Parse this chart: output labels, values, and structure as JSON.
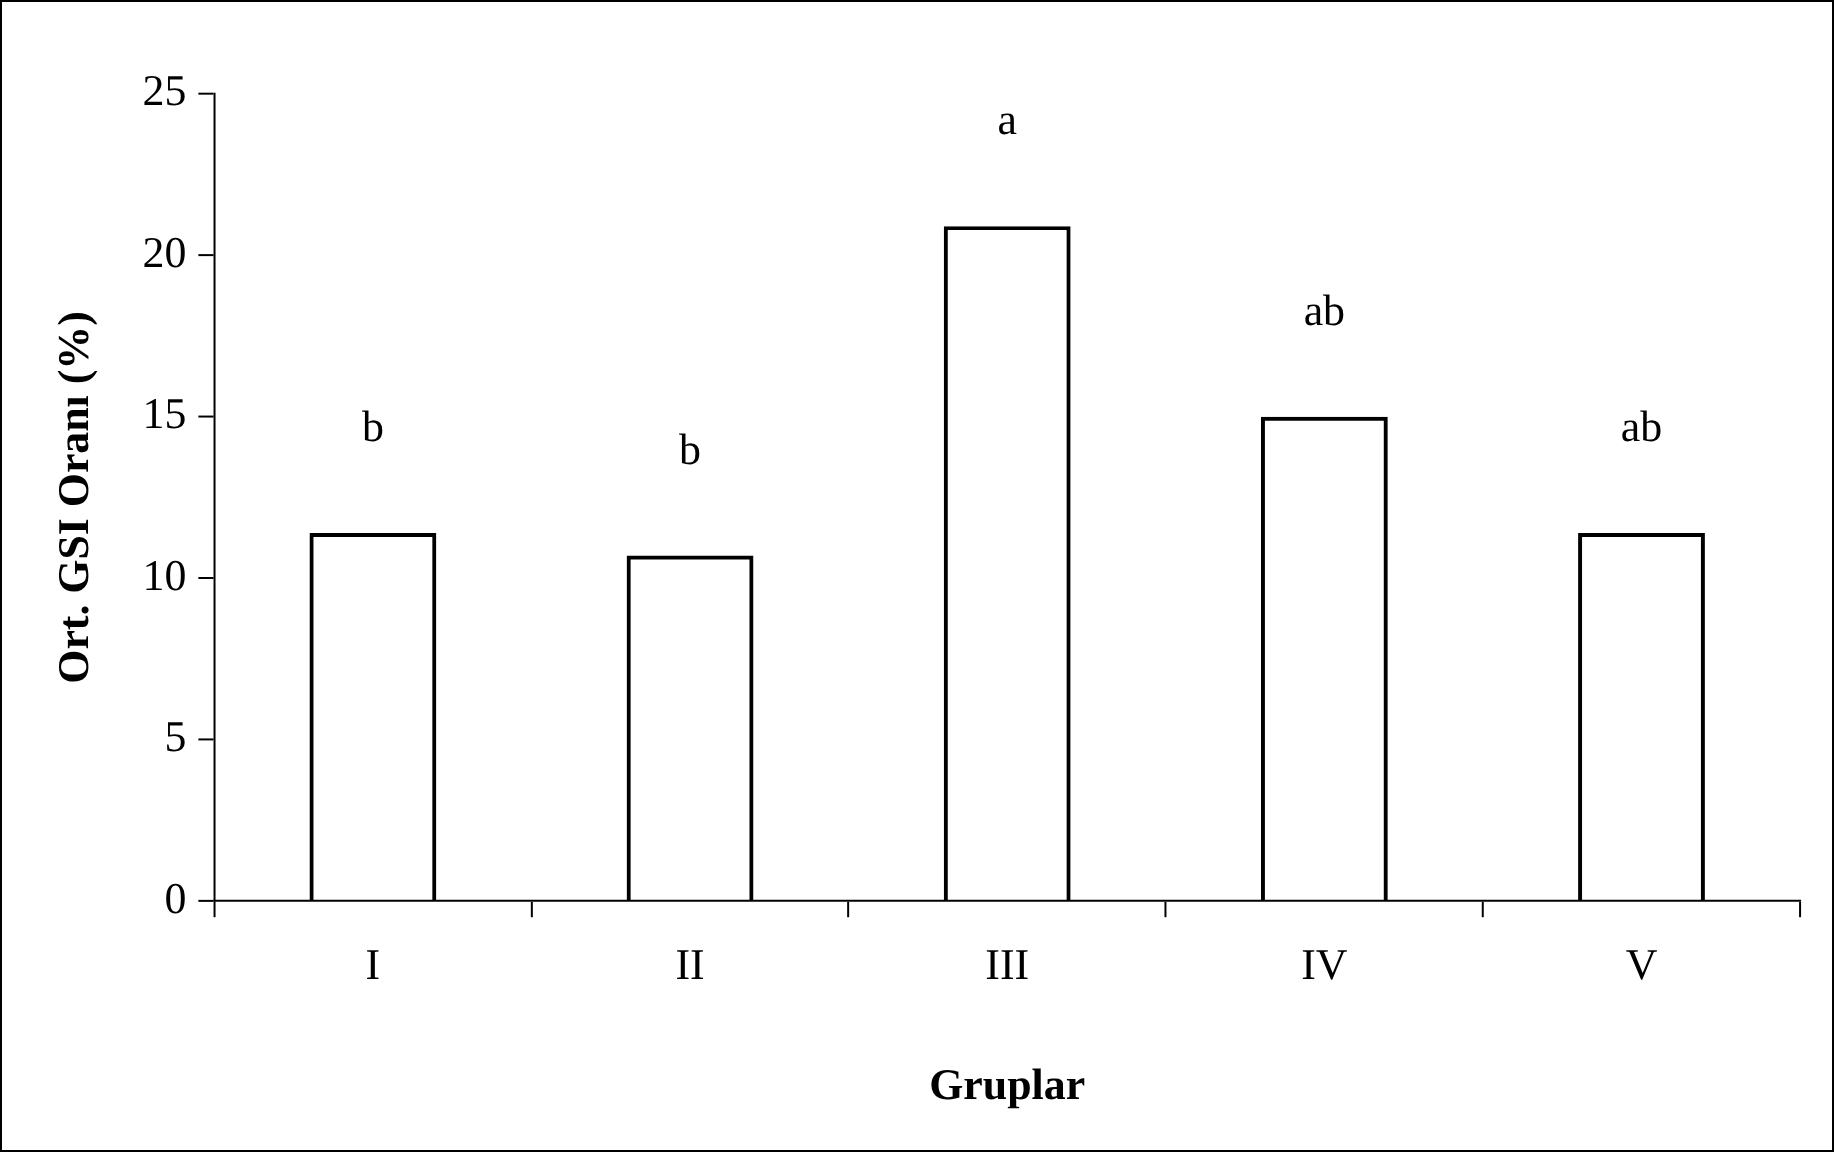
{
  "chart_data": {
    "type": "bar",
    "xlabel": "Gruplar",
    "ylabel": "Ort. GSI Oranı (%)",
    "categories": [
      "I",
      "II",
      "III",
      "IV",
      "V"
    ],
    "values": [
      11.4,
      10.7,
      20.9,
      15.0,
      11.4
    ],
    "color": "#000000",
    "ylim": [
      0,
      25
    ],
    "yticks": [
      0,
      5,
      10,
      15,
      20,
      25
    ],
    "grid": false,
    "legend": false,
    "annotations": [
      "b",
      "b",
      "a",
      "ab",
      "ab"
    ]
  }
}
